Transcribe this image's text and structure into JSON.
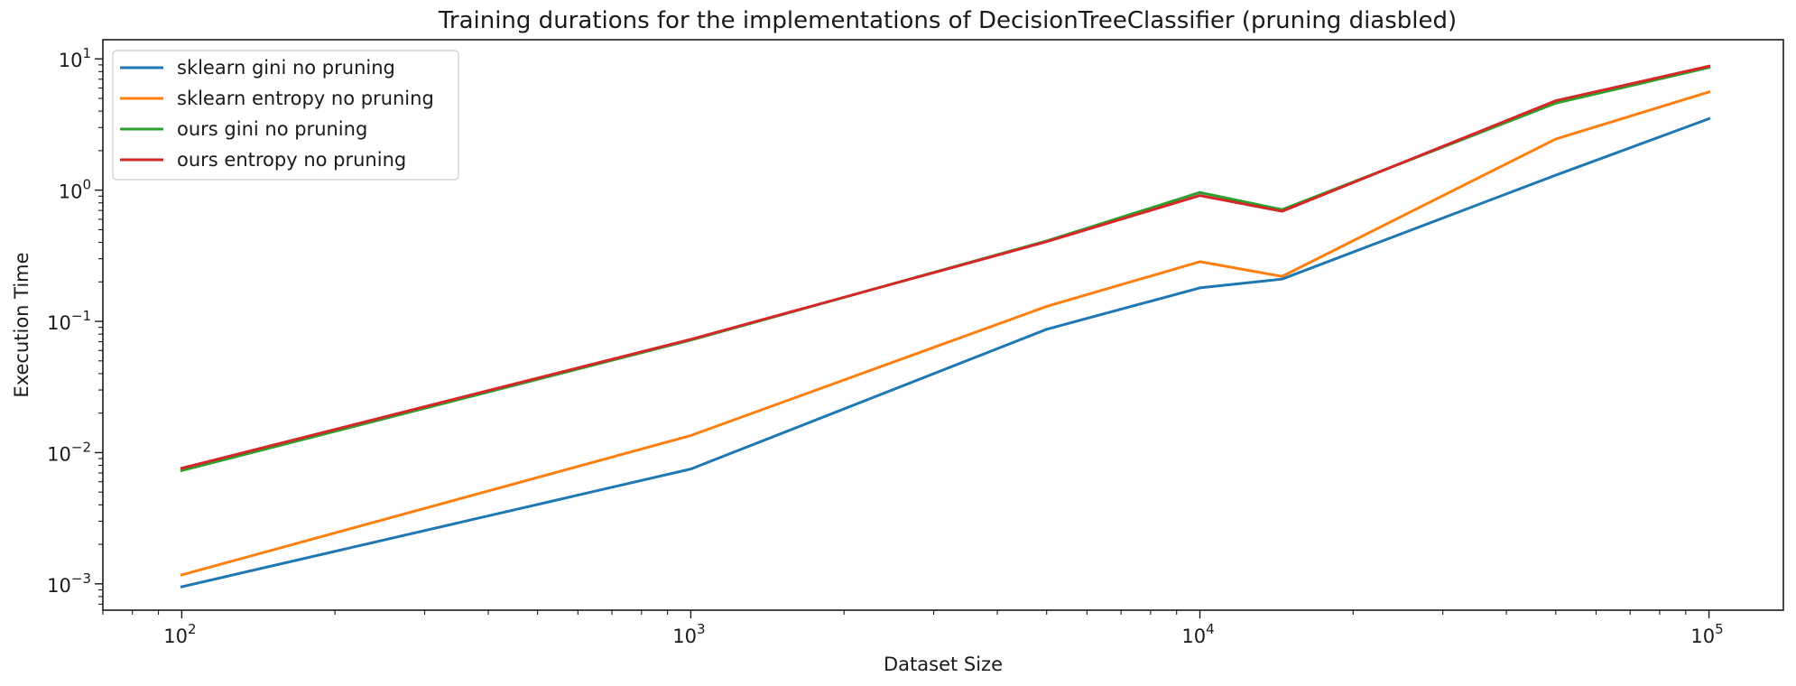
{
  "chart_data": {
    "type": "line",
    "title": "Training durations for the implementations of DecisionTreeClassifier (pruning diasbled)",
    "xlabel": "Dataset Size",
    "ylabel": "Execution Time",
    "xscale": "log",
    "yscale": "log",
    "xlim": [
      70,
      140000
    ],
    "ylim": [
      0.00063,
      14
    ],
    "grid": false,
    "legend_position": "upper-left",
    "x": [
      100,
      1000,
      5000,
      10000,
      14500,
      50000,
      100000
    ],
    "x_ticks": [
      {
        "value": 100,
        "base": "10",
        "exp": "2"
      },
      {
        "value": 1000,
        "base": "10",
        "exp": "3"
      },
      {
        "value": 10000,
        "base": "10",
        "exp": "4"
      },
      {
        "value": 100000,
        "base": "10",
        "exp": "5"
      }
    ],
    "y_ticks": [
      {
        "value": 0.001,
        "base": "10",
        "exp": "−3"
      },
      {
        "value": 0.01,
        "base": "10",
        "exp": "−2"
      },
      {
        "value": 0.1,
        "base": "10",
        "exp": "−1"
      },
      {
        "value": 1,
        "base": "10",
        "exp": "0"
      },
      {
        "value": 10,
        "base": "10",
        "exp": "1"
      }
    ],
    "series": [
      {
        "name": "sklearn gini no pruning",
        "color": "#1f77b4",
        "values": [
          0.00095,
          0.0075,
          0.087,
          0.18,
          0.21,
          1.3,
          3.5
        ]
      },
      {
        "name": "sklearn entropy no pruning",
        "color": "#ff7f0e",
        "values": [
          0.00117,
          0.0135,
          0.13,
          0.285,
          0.22,
          2.45,
          5.6
        ]
      },
      {
        "name": "ours gini no pruning",
        "color": "#2ca02c",
        "values": [
          0.0073,
          0.072,
          0.41,
          0.96,
          0.71,
          4.6,
          8.6
        ]
      },
      {
        "name": "ours entropy no pruning",
        "color": "#d62728",
        "values": [
          0.0076,
          0.073,
          0.405,
          0.91,
          0.69,
          4.8,
          8.8
        ]
      }
    ]
  }
}
